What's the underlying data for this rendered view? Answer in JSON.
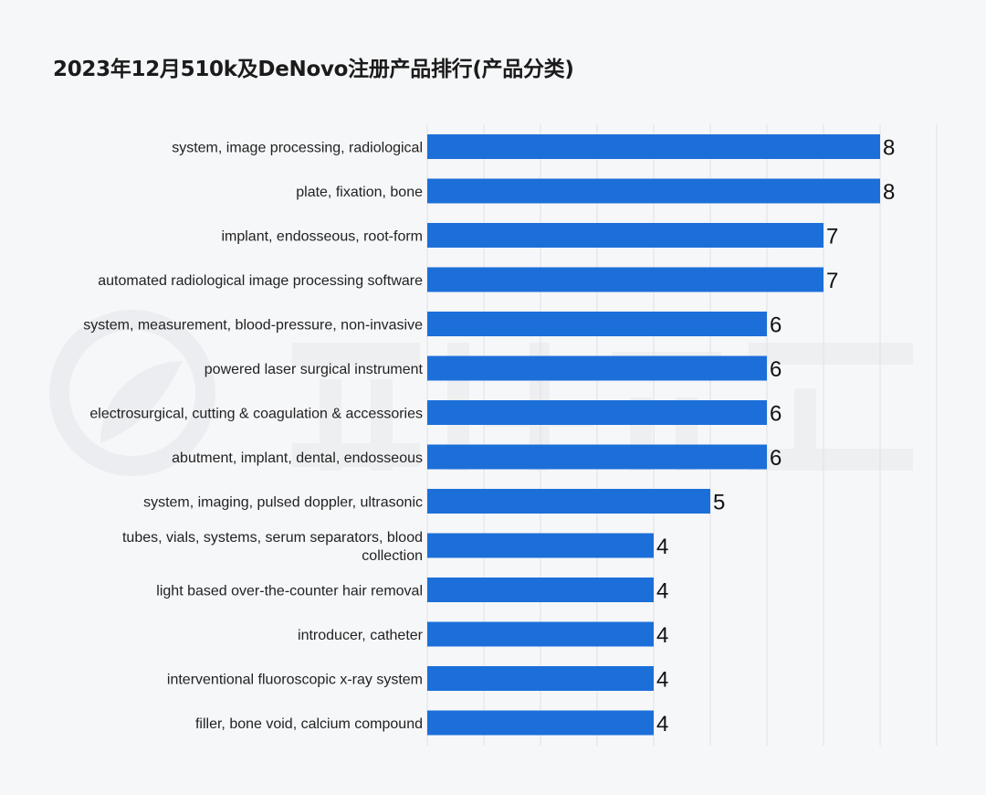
{
  "chart_data": {
    "type": "bar",
    "orientation": "horizontal",
    "title": "2023年12月510k及DeNovo注册产品排行(产品分类)",
    "categories": [
      "system, image processing, radiological",
      "plate, fixation, bone",
      "implant, endosseous, root-form",
      "automated radiological image processing software",
      "system, measurement, blood-pressure, non-invasive",
      "powered laser surgical instrument",
      "electrosurgical, cutting & coagulation & accessories",
      "abutment, implant, dental, endosseous",
      "system, imaging, pulsed doppler, ultrasonic",
      "tubes, vials, systems, serum separators, blood collection",
      "light based over-the-counter hair removal",
      "introducer, catheter",
      "interventional fluoroscopic x-ray system",
      "filler, bone void, calcium compound"
    ],
    "values": [
      8,
      8,
      7,
      7,
      6,
      6,
      6,
      6,
      5,
      4,
      4,
      4,
      4,
      4
    ],
    "xlim": [
      0,
      9
    ],
    "grid": true,
    "bar_color": "#1c6fd9",
    "grid_color": "#dfe2e7"
  }
}
